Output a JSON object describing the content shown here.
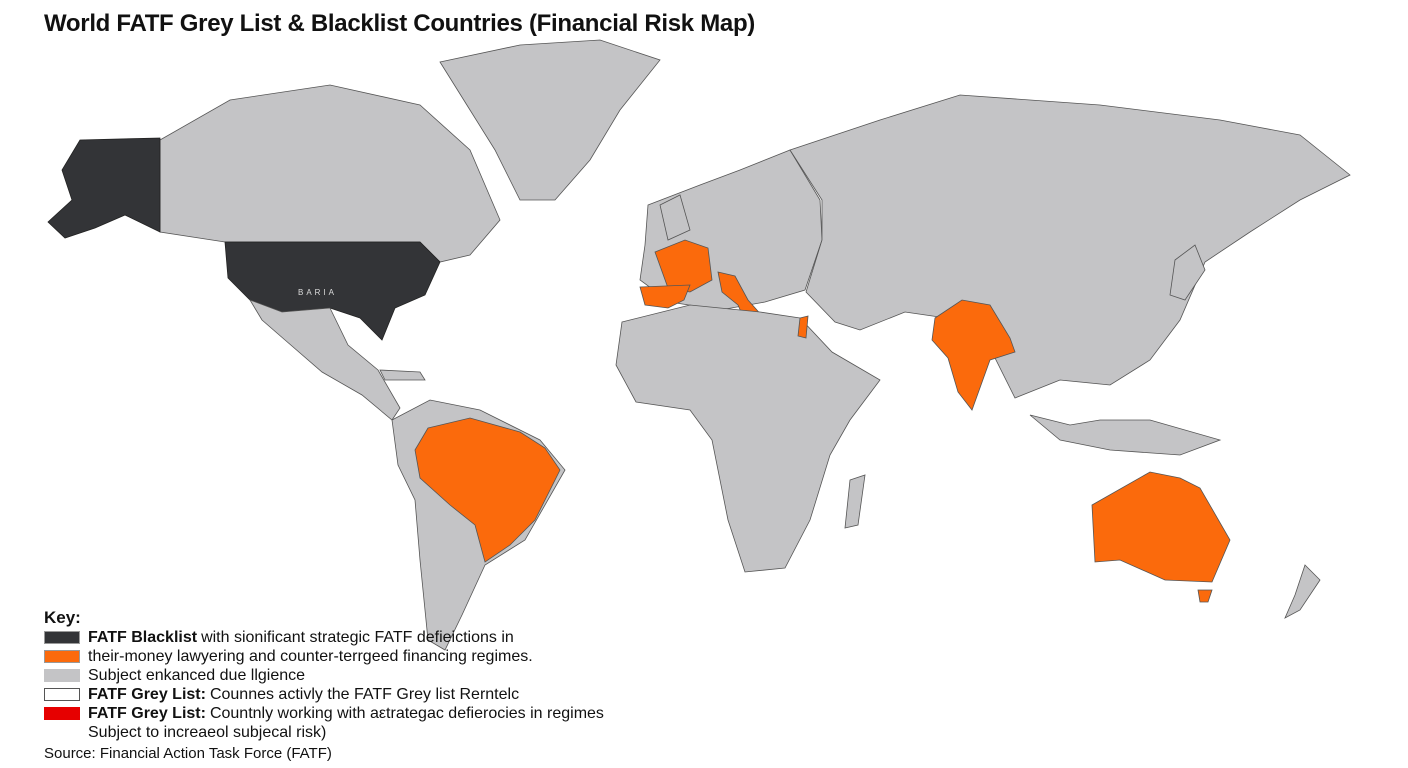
{
  "title": "World FATF Grey List & Blacklist Countries (Financial Risk Map)",
  "map": {
    "usa_label": "BARIA",
    "colors": {
      "land": "#c4c4c6",
      "blacklist": "#333437",
      "highlight": "#fb6a0c",
      "grey_list_red": "#e60000"
    },
    "dark_regions": [
      "Alaska",
      "United States"
    ],
    "orange_regions": [
      "France",
      "Spain",
      "Italy",
      "Israel",
      "India",
      "Brazil",
      "Australia"
    ]
  },
  "legend": {
    "heading": "Key:",
    "items": [
      {
        "color": "#333437",
        "bold": "FATF Blacklist",
        "text": "with sionificant strategic FATF defieictions in"
      },
      {
        "color": "#fb6a0c",
        "bold": "",
        "text": "their-money lawyering and counter-terrgeed financing regimes."
      },
      {
        "color": "#c4c4c6",
        "bold": "",
        "text": "Subject enkanced due llgience"
      },
      {
        "color": "#ffffff",
        "bold": "FATF Grey List:",
        "text": "Counnes activly the FATF Grey list Rerntelc"
      },
      {
        "color": "#e60000",
        "bold": "FATF Grey List:",
        "text": "Countnly working with aεtrategac defierocies in regimes"
      }
    ],
    "continuation": "Subject to increaeol subjecal risk)"
  },
  "source": "Source: Financial Action Task Force (FATF)"
}
